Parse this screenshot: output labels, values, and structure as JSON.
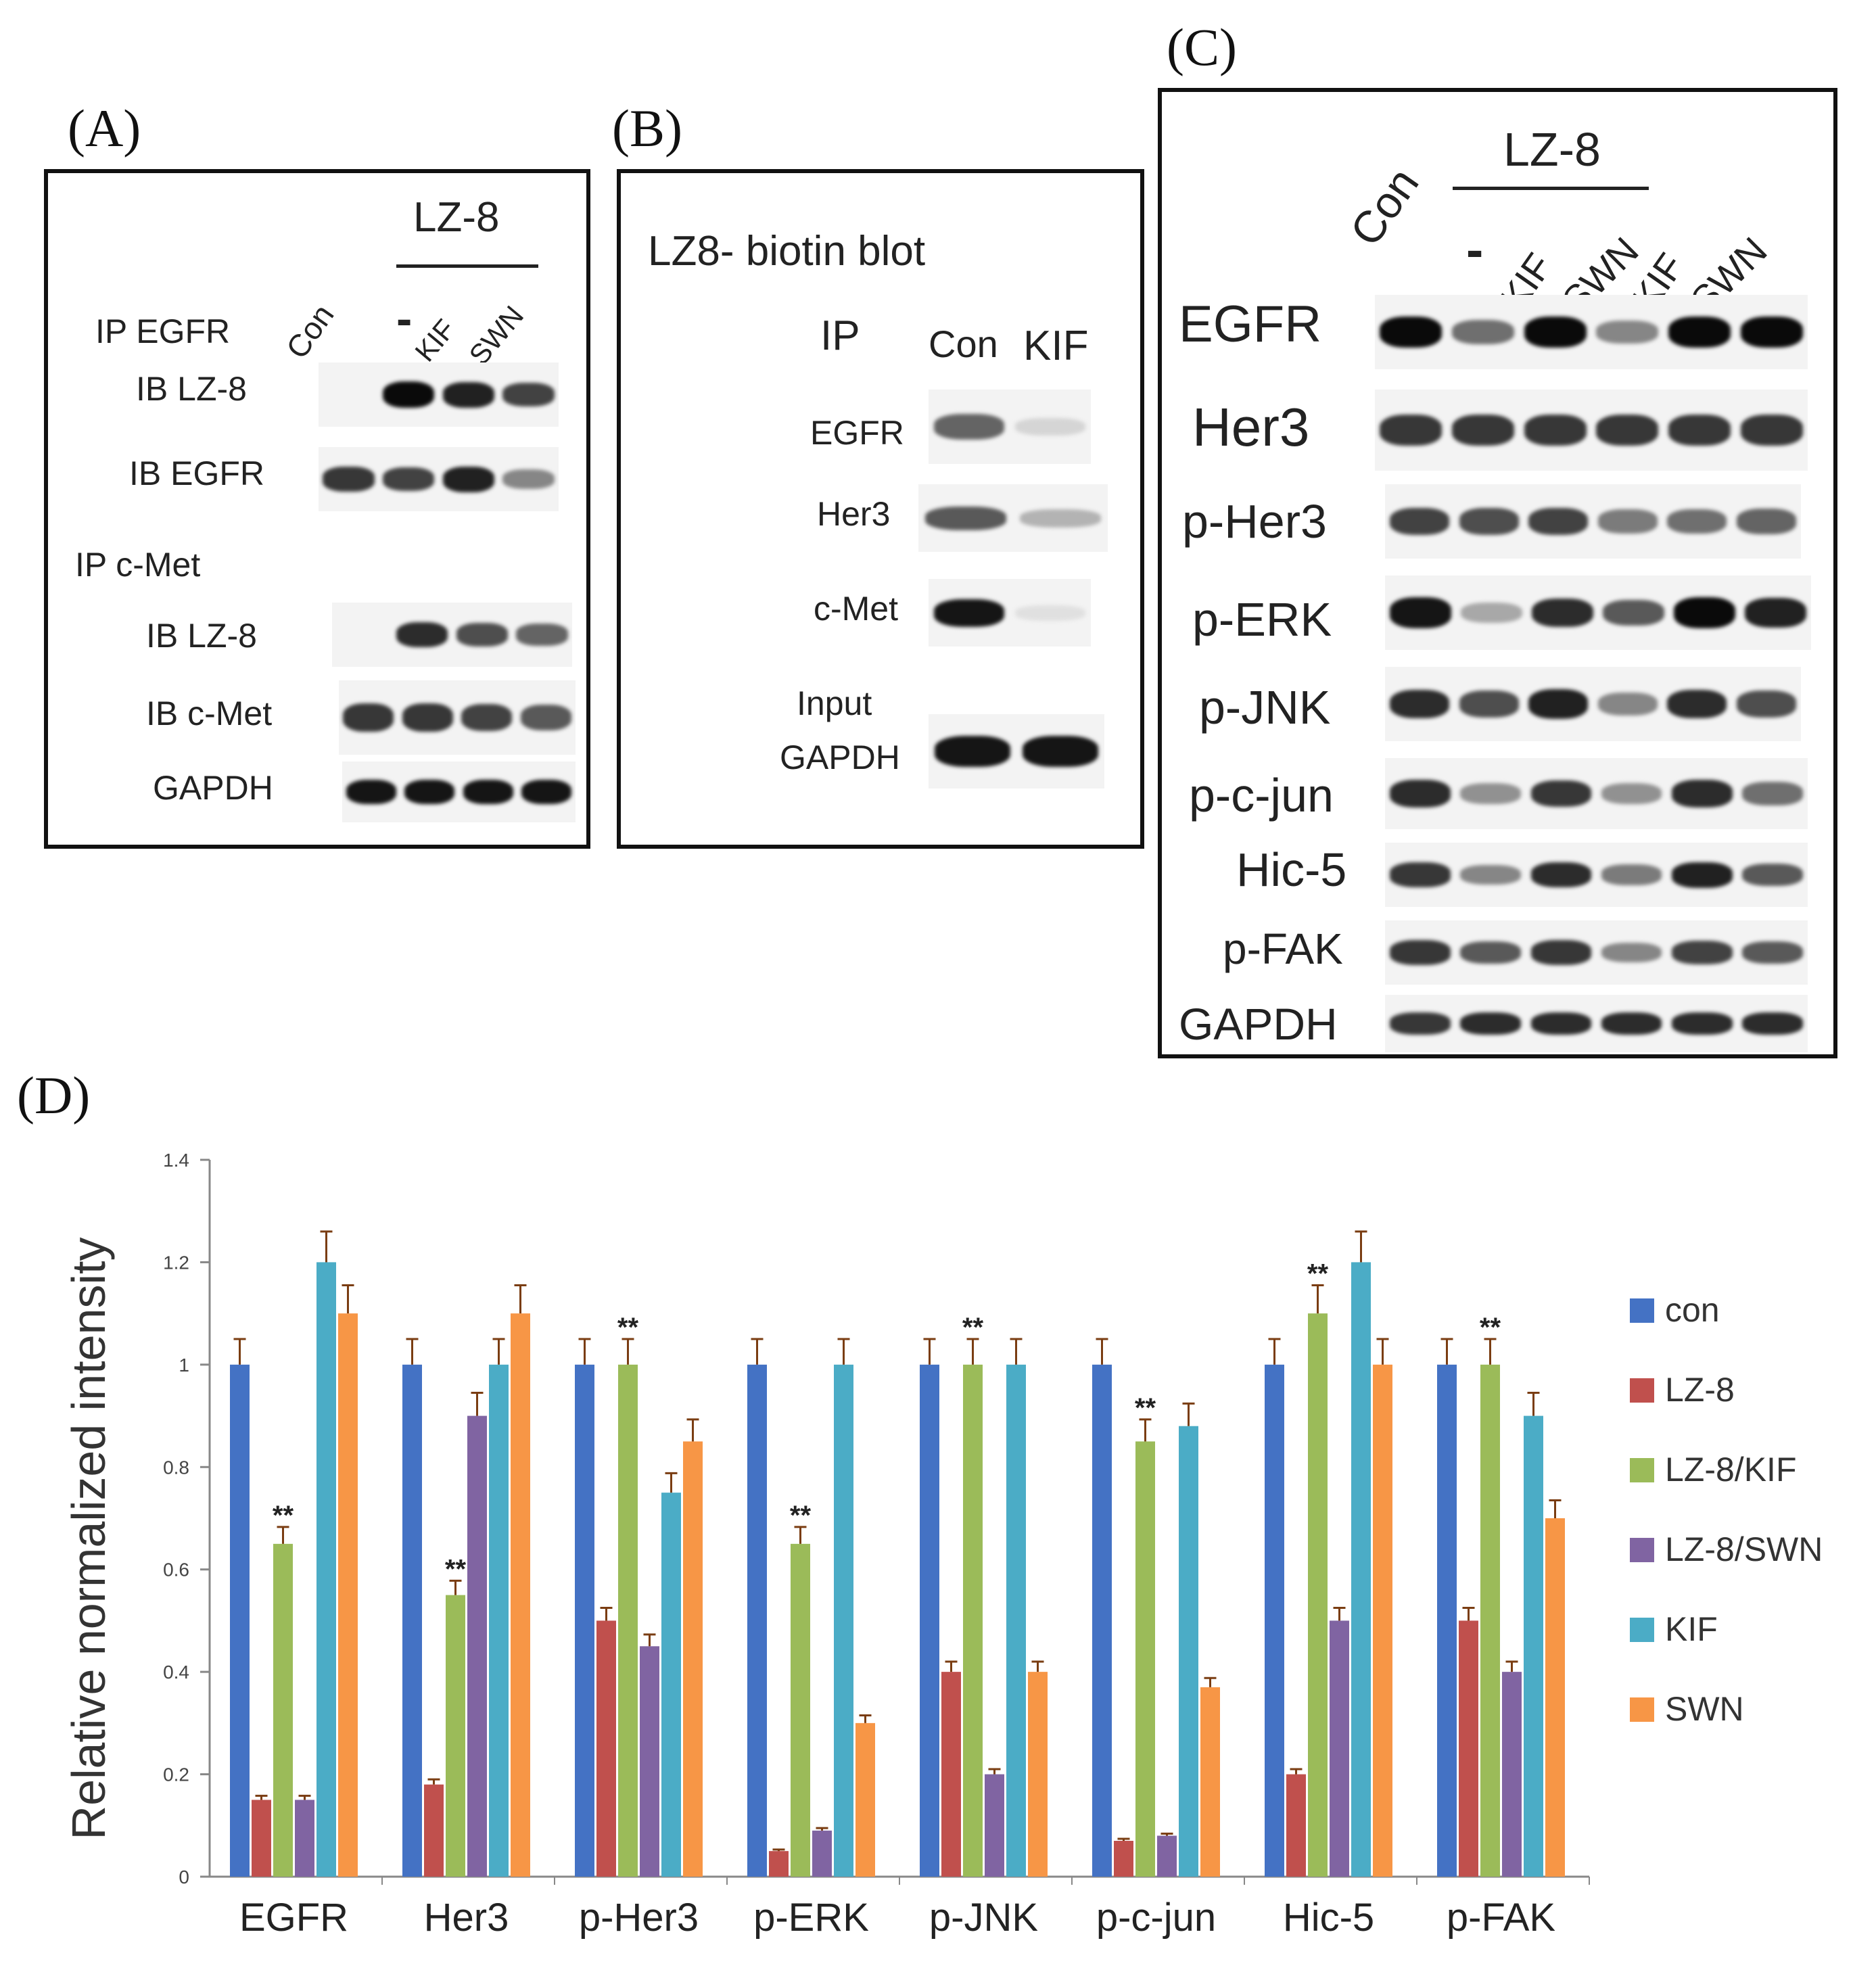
{
  "panel_a": {
    "label": "(A)",
    "header_treatment": "LZ-8",
    "lanes": [
      "Con",
      "-",
      "KIF",
      "SWN"
    ],
    "ip1": "IP EGFR",
    "ip1_rows": [
      "IB LZ-8",
      "IB EGFR"
    ],
    "ip2": "IP c-Met",
    "ip2_rows": [
      "IB LZ-8",
      "IB c-Met",
      "GAPDH"
    ]
  },
  "panel_b": {
    "label": "(B)",
    "title": "LZ8- biotin blot",
    "ip": "IP",
    "lanes": [
      "Con",
      "KIF"
    ],
    "rows": [
      "EGFR",
      "Her3",
      "c-Met"
    ],
    "input_label": "Input",
    "input_row": "GAPDH"
  },
  "panel_c": {
    "label": "(C)",
    "lane_con": "Con",
    "header_treatment": "LZ-8",
    "lanes": [
      "-",
      "KIF",
      "SWN",
      "KIF",
      "SWN"
    ],
    "rows": [
      "EGFR",
      "Her3",
      "p-Her3",
      "p-ERK",
      "p-JNK",
      "p-c-jun",
      "Hic-5",
      "p-FAK",
      "GAPDH"
    ]
  },
  "panel_d": {
    "label": "(D)"
  },
  "chart_data": {
    "type": "bar",
    "title": "",
    "xlabel": "",
    "ylabel": "Relative normalized intensity",
    "ylim": [
      0,
      1.4
    ],
    "yticks": [
      "0",
      "0.2",
      "0.4",
      "0.6",
      "0.8",
      "1",
      "1.2",
      "1.4"
    ],
    "categories": [
      "EGFR",
      "Her3",
      "p-Her3",
      "p-ERK",
      "p-JNK",
      "p-c-jun",
      "Hic-5",
      "p-FAK"
    ],
    "series": [
      {
        "name": "con",
        "color": "#4472c4",
        "values": [
          1.0,
          1.0,
          1.0,
          1.0,
          1.0,
          1.0,
          1.0,
          1.0
        ],
        "errors": [
          0.05,
          0.05,
          0.05,
          0.05,
          0.05,
          0.05,
          0.05,
          0.05
        ]
      },
      {
        "name": "LZ-8",
        "color": "#c0504d",
        "values": [
          0.15,
          0.18,
          0.5,
          0.05,
          0.4,
          0.07,
          0.2,
          0.5
        ],
        "errors": [
          0.008,
          0.01,
          0.025,
          0.003,
          0.02,
          0.004,
          0.01,
          0.025
        ]
      },
      {
        "name": "LZ-8/KIF",
        "color": "#9bbb59",
        "values": [
          0.65,
          0.55,
          1.0,
          0.65,
          1.0,
          0.85,
          1.1,
          1.0
        ],
        "errors": [
          0.033,
          0.028,
          0.05,
          0.033,
          0.05,
          0.043,
          0.055,
          0.05
        ]
      },
      {
        "name": "LZ-8/SWN",
        "color": "#8064a2",
        "values": [
          0.15,
          0.9,
          0.45,
          0.09,
          0.2,
          0.08,
          0.5,
          0.4
        ],
        "errors": [
          0.008,
          0.045,
          0.023,
          0.005,
          0.01,
          0.004,
          0.025,
          0.02
        ]
      },
      {
        "name": "KIF",
        "color": "#4bacc6",
        "values": [
          1.2,
          1.0,
          0.75,
          1.0,
          1.0,
          0.88,
          1.2,
          0.9
        ],
        "errors": [
          0.06,
          0.05,
          0.038,
          0.05,
          0.05,
          0.044,
          0.06,
          0.045
        ]
      },
      {
        "name": "SWN",
        "color": "#f79646",
        "values": [
          1.1,
          1.1,
          0.85,
          0.3,
          0.4,
          0.37,
          1.0,
          0.7
        ],
        "errors": [
          0.055,
          0.055,
          0.043,
          0.015,
          0.02,
          0.018,
          0.05,
          0.035
        ]
      }
    ],
    "annotations": [
      {
        "category": "EGFR",
        "series": "LZ-8/KIF",
        "text": "**"
      },
      {
        "category": "Her3",
        "series": "LZ-8/KIF",
        "text": "**"
      },
      {
        "category": "p-Her3",
        "series": "LZ-8/KIF",
        "text": "**"
      },
      {
        "category": "p-ERK",
        "series": "LZ-8/KIF",
        "text": "**"
      },
      {
        "category": "p-JNK",
        "series": "LZ-8/KIF",
        "text": "**"
      },
      {
        "category": "p-c-jun",
        "series": "LZ-8/KIF",
        "text": "**"
      },
      {
        "category": "Hic-5",
        "series": "LZ-8/KIF",
        "text": "**"
      },
      {
        "category": "p-FAK",
        "series": "LZ-8/KIF",
        "text": "**"
      }
    ],
    "legend_position": "right"
  },
  "blot_intensity": {
    "panel_a": [
      [
        0.0,
        1.0,
        0.9,
        0.75
      ],
      [
        0.8,
        0.75,
        0.9,
        0.45
      ],
      [
        0.0,
        0.85,
        0.7,
        0.6
      ],
      [
        0.8,
        0.8,
        0.75,
        0.65
      ],
      [
        0.95,
        0.95,
        0.95,
        0.95
      ]
    ],
    "panel_b": [
      [
        0.6,
        0.1
      ],
      [
        0.65,
        0.25
      ],
      [
        0.95,
        0.05
      ],
      [
        0.95,
        0.95
      ]
    ],
    "panel_c": [
      [
        1.0,
        0.55,
        1.0,
        0.45,
        1.0,
        1.0
      ],
      [
        0.8,
        0.8,
        0.8,
        0.8,
        0.8,
        0.8
      ],
      [
        0.75,
        0.7,
        0.75,
        0.5,
        0.55,
        0.6
      ],
      [
        0.95,
        0.3,
        0.85,
        0.65,
        1.0,
        0.9
      ],
      [
        0.85,
        0.7,
        0.9,
        0.45,
        0.85,
        0.7
      ],
      [
        0.85,
        0.4,
        0.8,
        0.4,
        0.85,
        0.55
      ],
      [
        0.8,
        0.45,
        0.85,
        0.5,
        0.9,
        0.65
      ],
      [
        0.8,
        0.65,
        0.8,
        0.45,
        0.75,
        0.65
      ],
      [
        0.8,
        0.85,
        0.85,
        0.85,
        0.85,
        0.85
      ]
    ]
  }
}
